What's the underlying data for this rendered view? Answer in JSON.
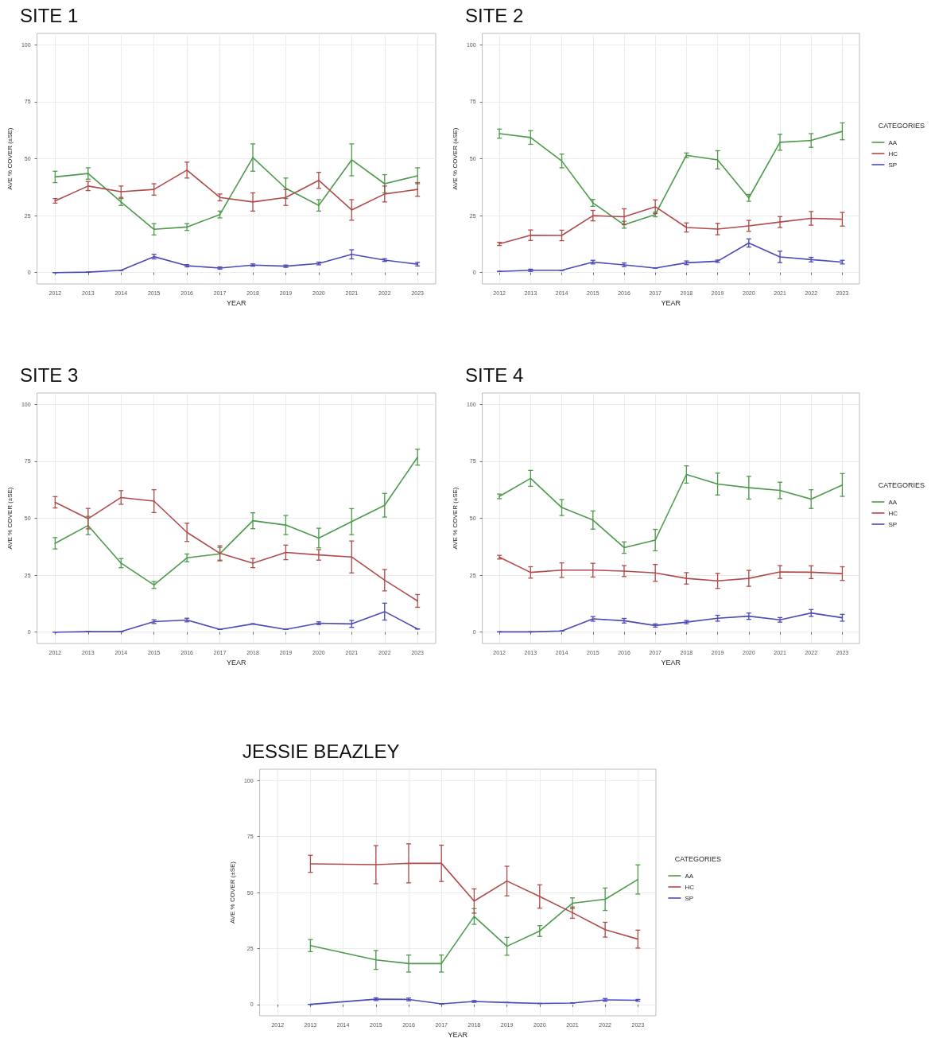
{
  "chart_data": [
    {
      "type": "line",
      "title": "SITE 1",
      "xlabel": "YEAR",
      "ylabel": "AVE % COVER (±SE)",
      "x": [
        2012,
        2013,
        2014,
        2015,
        2016,
        2017,
        2018,
        2019,
        2020,
        2021,
        2022,
        2023
      ],
      "xlim": [
        2011.45,
        2023.55
      ],
      "xticks": [
        2012,
        2013,
        2014,
        2015,
        2016,
        2017,
        2018,
        2019,
        2020,
        2021,
        2022,
        2023
      ],
      "ylim": [
        -5,
        105
      ],
      "yticks": [
        0,
        25,
        50,
        75,
        100
      ],
      "grid": true,
      "legend": false,
      "marker": "none",
      "line_style": "solid",
      "series": [
        {
          "color": "#4c9a4c",
          "values": [
            42,
            43.5,
            31,
            19,
            20,
            25.5,
            50.5,
            37,
            29.5,
            49.5,
            39,
            42.5
          ],
          "errors": [
            2.5,
            2.5,
            1.5,
            2.5,
            1.5,
            1.5,
            6,
            4.5,
            2.5,
            7,
            4,
            3.5
          ]
        },
        {
          "color": "#b04a4a",
          "values": [
            31.5,
            38,
            35.5,
            36.5,
            45,
            33,
            31,
            33,
            40.5,
            27.5,
            34.5,
            36.5
          ],
          "errors": [
            1,
            2,
            2.5,
            2.5,
            3.5,
            1.5,
            4,
            3.5,
            3.5,
            4.5,
            3.5,
            3
          ]
        },
        {
          "color": "#4a4ab8",
          "values": [
            0,
            0.2,
            1,
            7,
            3,
            2,
            3.3,
            2.8,
            4,
            8,
            5.5,
            3.7
          ],
          "errors": [
            0,
            0,
            0,
            1,
            0.5,
            0.5,
            0.5,
            0.5,
            0.6,
            2,
            0.6,
            0.8
          ]
        }
      ]
    },
    {
      "type": "line",
      "title": "SITE 2",
      "xlabel": "YEAR",
      "ylabel": "AVE % COVER (±SE)",
      "legend_title": "CATEGORIES",
      "x": [
        2012,
        2013,
        2014,
        2015,
        2016,
        2017,
        2018,
        2019,
        2020,
        2021,
        2022,
        2023
      ],
      "xlim": [
        2011.45,
        2023.55
      ],
      "xticks": [
        2012,
        2013,
        2014,
        2015,
        2016,
        2017,
        2018,
        2019,
        2020,
        2021,
        2022,
        2023
      ],
      "ylim": [
        -5,
        105
      ],
      "yticks": [
        0,
        25,
        50,
        75,
        100
      ],
      "grid": true,
      "legend": "right",
      "marker": "none",
      "line_style": "solid",
      "series": [
        {
          "name": "AA",
          "color": "#4c9a4c",
          "values": [
            61,
            59.3,
            49,
            30.6,
            21,
            25.5,
            51.5,
            49.5,
            32.8,
            57.2,
            58,
            62
          ],
          "errors": [
            2,
            3,
            3,
            1.5,
            1.5,
            1,
            1,
            4,
            1.5,
            3.5,
            3,
            3.7
          ]
        },
        {
          "name": "HC",
          "color": "#b04a4a",
          "values": [
            12.6,
            16.4,
            16.3,
            25,
            24.5,
            28.9,
            19.8,
            19.1,
            20.5,
            22.2,
            23.8,
            23.4
          ],
          "errors": [
            0.7,
            2.3,
            2.3,
            2.3,
            3.5,
            3,
            2,
            2.5,
            2.4,
            2.4,
            3,
            3
          ]
        },
        {
          "name": "SP",
          "color": "#4a4ab8",
          "values": [
            0.5,
            1,
            1,
            4.6,
            3.4,
            2,
            4.3,
            5,
            13,
            6.9,
            5.7,
            4.6
          ],
          "errors": [
            0,
            0.5,
            0,
            0.8,
            0.8,
            0,
            0.8,
            0.5,
            1.8,
            2.5,
            1,
            0.8
          ]
        }
      ]
    },
    {
      "type": "line",
      "title": "SITE 3",
      "xlabel": "YEAR",
      "ylabel": "AVE % COVER (±SE)",
      "x": [
        2012,
        2013,
        2014,
        2015,
        2016,
        2017,
        2018,
        2019,
        2020,
        2021,
        2022,
        2023
      ],
      "xlim": [
        2011.45,
        2023.55
      ],
      "xticks": [
        2012,
        2013,
        2014,
        2015,
        2016,
        2017,
        2018,
        2019,
        2020,
        2021,
        2022,
        2023
      ],
      "ylim": [
        -5,
        105
      ],
      "yticks": [
        0,
        25,
        50,
        75,
        100
      ],
      "grid": true,
      "legend": false,
      "marker": "none",
      "line_style": "solid",
      "series": [
        {
          "color": "#4c9a4c",
          "values": [
            39,
            46.8,
            30.3,
            20.7,
            32.6,
            34.4,
            48.9,
            47,
            41.3,
            48.5,
            55.7,
            76.8
          ],
          "errors": [
            2.5,
            4,
            2,
            1.5,
            1.7,
            2.8,
            3.5,
            4.2,
            4.3,
            5.7,
            5.2,
            3.5
          ]
        },
        {
          "color": "#b04a4a",
          "values": [
            57,
            49.8,
            59.1,
            57.5,
            43.8,
            34.6,
            30.3,
            35,
            33.9,
            33,
            22.8,
            13.7
          ],
          "errors": [
            2.5,
            4.5,
            3,
            5,
            4,
            3.3,
            2,
            3.2,
            2.3,
            7,
            4.7,
            2.8
          ]
        },
        {
          "color": "#4a4ab8",
          "values": [
            0,
            0.2,
            0.2,
            4.6,
            5.3,
            1.2,
            3.6,
            1.2,
            3.9,
            3.6,
            9,
            1.4
          ],
          "errors": [
            0,
            0,
            0,
            0.8,
            0.8,
            0,
            0,
            0,
            0.6,
            1.5,
            3.7,
            0
          ]
        }
      ]
    },
    {
      "type": "line",
      "title": "SITE 4",
      "xlabel": "YEAR",
      "ylabel": "AVE % COVER (±SE)",
      "legend_title": "CATEGORIES",
      "x": [
        2012,
        2013,
        2014,
        2015,
        2016,
        2017,
        2018,
        2019,
        2020,
        2021,
        2022,
        2023
      ],
      "xlim": [
        2011.45,
        2023.55
      ],
      "xticks": [
        2012,
        2013,
        2014,
        2015,
        2016,
        2017,
        2018,
        2019,
        2020,
        2021,
        2022,
        2023
      ],
      "ylim": [
        -5,
        105
      ],
      "yticks": [
        0,
        25,
        50,
        75,
        100
      ],
      "grid": true,
      "legend": "right",
      "marker": "none",
      "line_style": "solid",
      "series": [
        {
          "name": "AA",
          "color": "#4c9a4c",
          "values": [
            59.6,
            67.5,
            54.7,
            49.2,
            37.1,
            40.4,
            69.2,
            65,
            63.4,
            62.2,
            58.4,
            64.6
          ],
          "errors": [
            1,
            3.5,
            3.5,
            4,
            2.5,
            4.7,
            3.8,
            4.8,
            5,
            3.6,
            4.1,
            5
          ]
        },
        {
          "name": "HC",
          "color": "#b04a4a",
          "values": [
            32.9,
            26.2,
            27.2,
            27.2,
            26.8,
            26,
            23.6,
            22.5,
            23.6,
            26.4,
            26.3,
            25.7
          ],
          "errors": [
            0.8,
            2.5,
            3.2,
            3,
            2.4,
            3.7,
            2.5,
            3.3,
            3.5,
            2.8,
            2.8,
            3
          ]
        },
        {
          "name": "SP",
          "color": "#4a4ab8",
          "values": [
            0.1,
            0.1,
            0.5,
            5.8,
            5,
            2.9,
            4.4,
            6.1,
            7,
            5.4,
            8.4,
            6.3
          ],
          "errors": [
            0,
            0,
            0,
            1,
            1,
            0.7,
            0.7,
            1.3,
            1.4,
            1,
            1.5,
            1.5
          ]
        }
      ]
    },
    {
      "type": "line",
      "title": "JESSIE BEAZLEY",
      "xlabel": "YEAR",
      "ylabel": "AVE % COVER (±SE)",
      "legend_title": "CATEGORIES",
      "x": [
        2013,
        2015,
        2016,
        2017,
        2018,
        2019,
        2020,
        2021,
        2022,
        2023
      ],
      "xlim": [
        2011.45,
        2023.55
      ],
      "xticks": [
        2012,
        2013,
        2014,
        2015,
        2016,
        2017,
        2018,
        2019,
        2020,
        2021,
        2022,
        2023
      ],
      "ylim": [
        -5,
        105
      ],
      "yticks": [
        0,
        25,
        50,
        75,
        100
      ],
      "grid": true,
      "legend": "right",
      "marker": "none",
      "line_style": "solid",
      "series": [
        {
          "name": "AA",
          "color": "#4c9a4c",
          "values": [
            26.3,
            19.9,
            18.3,
            18.3,
            39.3,
            26,
            32.8,
            45.2,
            47,
            55.8
          ],
          "errors": [
            2.7,
            4.2,
            3.8,
            3.8,
            3.5,
            4,
            2.4,
            2.4,
            5,
            6.5
          ]
        },
        {
          "name": "HC",
          "color": "#b04a4a",
          "values": [
            62.8,
            62.4,
            63,
            63,
            46.2,
            55.1,
            48.2,
            41,
            33.4,
            29.2
          ],
          "errors": [
            3.8,
            8.5,
            8.7,
            8.1,
            5.4,
            6.6,
            5.2,
            2.5,
            3.3,
            4
          ]
        },
        {
          "name": "SP",
          "color": "#4a4ab8",
          "values": [
            0.1,
            2.4,
            2.3,
            0.3,
            1.4,
            0.9,
            0.5,
            0.7,
            2.1,
            1.9
          ],
          "errors": [
            0,
            0.6,
            0.6,
            0,
            0.4,
            0,
            0,
            0,
            0.6,
            0.4
          ]
        }
      ]
    }
  ]
}
